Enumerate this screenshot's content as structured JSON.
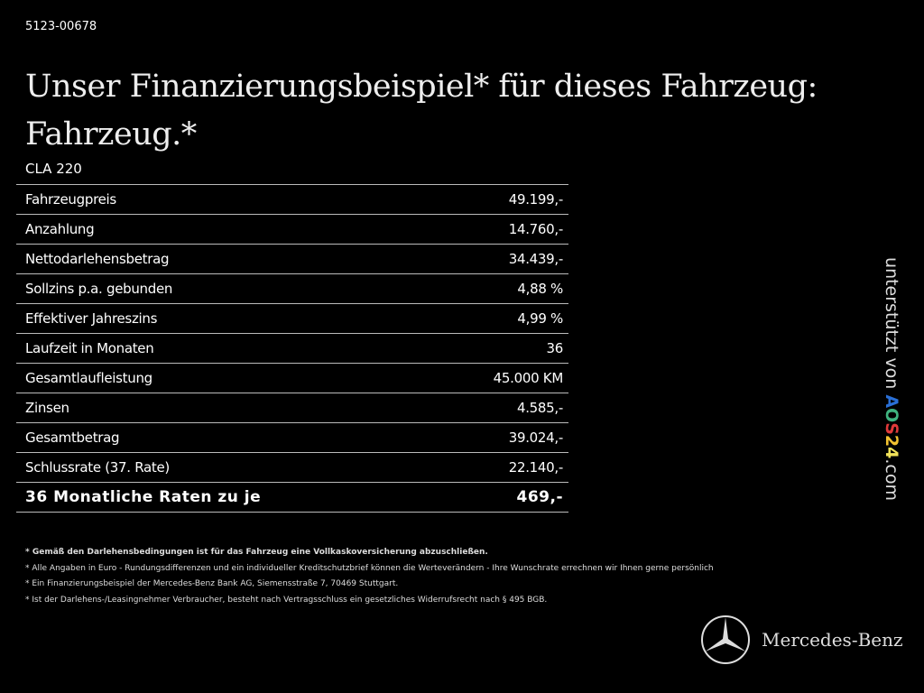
{
  "code": "5123-00678",
  "title_line1": "Unser Finanzierungsbeispiel* für dieses Fahrzeug:",
  "title_line2": "Fahrzeug.*",
  "model": "CLA 220",
  "rows": [
    {
      "label": "Fahrzeugpreis",
      "value": "49.199,-"
    },
    {
      "label": "Anzahlung",
      "value": "14.760,-"
    },
    {
      "label": "Nettodarlehensbetrag",
      "value": "34.439,-"
    },
    {
      "label": "Sollzins p.a. gebunden",
      "value": "4,88 %"
    },
    {
      "label": "Effektiver Jahreszins",
      "value": "4,99 %"
    },
    {
      "label": "Laufzeit in Monaten",
      "value": "36"
    },
    {
      "label": "Gesamtlaufleistung",
      "value": "45.000 KM"
    },
    {
      "label": "Zinsen",
      "value": "4.585,-"
    },
    {
      "label": "Gesamtbetrag",
      "value": "39.024,-"
    },
    {
      "label": "Schlussrate (37. Rate)",
      "value": "22.140,-"
    }
  ],
  "final": {
    "label": "36 Monatliche Raten zu je",
    "value": "469,-"
  },
  "notes": [
    "* Gemäß den Darlehensbedingungen ist für das Fahrzeug eine Vollkaskoversicherung abzuschließen.",
    "* Alle Angaben in Euro - Rundungsdifferenzen und ein individueller Kreditschutzbrief können die Werteverändern - Ihre Wunschrate errechnen wir Ihnen gerne persönlich",
    "* Ein Finanzierungsbeispiel der Mercedes-Benz Bank AG, Siemensstraße 7, 70469 Stuttgart.",
    "* Ist der Darlehens-/Leasingnehmer Verbraucher, besteht nach Vertragsschluss ein gesetzliches Widerrufsrecht nach § 495 BGB."
  ],
  "side": {
    "prefix": "unterstützt von",
    "logo": [
      "A",
      "O",
      "S",
      "2",
      "4"
    ],
    "suffix": ".com",
    "colors": [
      "#2a6fd6",
      "#3fb37f",
      "#e03a3a",
      "#f2c230",
      "#f2e35a"
    ]
  },
  "brand": "Mercedes-Benz"
}
